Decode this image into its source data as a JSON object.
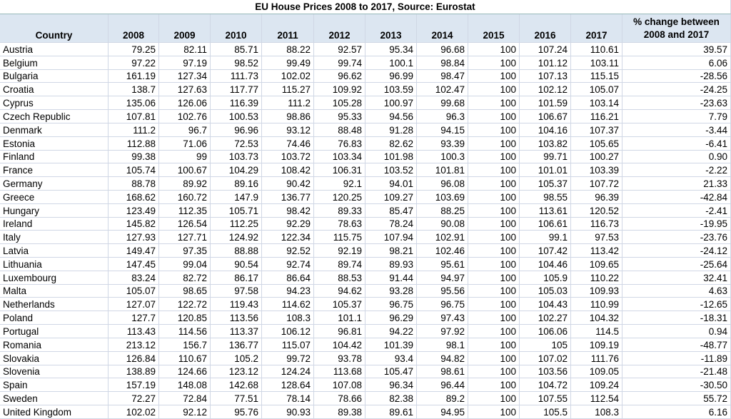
{
  "title": "EU House Prices 2008 to 2017, Source: Eurostat",
  "table": {
    "header": [
      "Country",
      "2008",
      "2009",
      "2010",
      "2011",
      "2012",
      "2013",
      "2014",
      "2015",
      "2016",
      "2017",
      "% change between 2008 and 2017"
    ],
    "rows": [
      [
        "Austria",
        "79.25",
        "82.11",
        "85.71",
        "88.22",
        "92.57",
        "95.34",
        "96.68",
        "100",
        "107.24",
        "110.61",
        "39.57"
      ],
      [
        "Belgium",
        "97.22",
        "97.19",
        "98.52",
        "99.49",
        "99.74",
        "100.1",
        "98.84",
        "100",
        "101.12",
        "103.11",
        "6.06"
      ],
      [
        "Bulgaria",
        "161.19",
        "127.34",
        "111.73",
        "102.02",
        "96.62",
        "96.99",
        "98.47",
        "100",
        "107.13",
        "115.15",
        "-28.56"
      ],
      [
        "Croatia",
        "138.7",
        "127.63",
        "117.77",
        "115.27",
        "109.92",
        "103.59",
        "102.47",
        "100",
        "102.12",
        "105.07",
        "-24.25"
      ],
      [
        "Cyprus",
        "135.06",
        "126.06",
        "116.39",
        "111.2",
        "105.28",
        "100.97",
        "99.68",
        "100",
        "101.59",
        "103.14",
        "-23.63"
      ],
      [
        "Czech Republic",
        "107.81",
        "102.76",
        "100.53",
        "98.86",
        "95.33",
        "94.56",
        "96.3",
        "100",
        "106.67",
        "116.21",
        "7.79"
      ],
      [
        "Denmark",
        "111.2",
        "96.7",
        "96.96",
        "93.12",
        "88.48",
        "91.28",
        "94.15",
        "100",
        "104.16",
        "107.37",
        "-3.44"
      ],
      [
        "Estonia",
        "112.88",
        "71.06",
        "72.53",
        "74.46",
        "76.83",
        "82.62",
        "93.39",
        "100",
        "103.82",
        "105.65",
        "-6.41"
      ],
      [
        "Finland",
        "99.38",
        "99",
        "103.73",
        "103.72",
        "103.34",
        "101.98",
        "100.3",
        "100",
        "99.71",
        "100.27",
        "0.90"
      ],
      [
        "France",
        "105.74",
        "100.67",
        "104.29",
        "108.42",
        "106.31",
        "103.52",
        "101.81",
        "100",
        "101.01",
        "103.39",
        "-2.22"
      ],
      [
        "Germany",
        "88.78",
        "89.92",
        "89.16",
        "90.42",
        "92.1",
        "94.01",
        "96.08",
        "100",
        "105.37",
        "107.72",
        "21.33"
      ],
      [
        "Greece",
        "168.62",
        "160.72",
        "147.9",
        "136.77",
        "120.25",
        "109.27",
        "103.69",
        "100",
        "98.55",
        "96.39",
        "-42.84"
      ],
      [
        "Hungary",
        "123.49",
        "112.35",
        "105.71",
        "98.42",
        "89.33",
        "85.47",
        "88.25",
        "100",
        "113.61",
        "120.52",
        "-2.41"
      ],
      [
        "Ireland",
        "145.82",
        "126.54",
        "112.25",
        "92.29",
        "78.63",
        "78.24",
        "90.08",
        "100",
        "106.61",
        "116.73",
        "-19.95"
      ],
      [
        "Italy",
        "127.93",
        "127.71",
        "124.92",
        "122.34",
        "115.75",
        "107.94",
        "102.91",
        "100",
        "99.1",
        "97.53",
        "-23.76"
      ],
      [
        "Latvia",
        "149.47",
        "97.35",
        "88.88",
        "92.52",
        "92.19",
        "98.21",
        "102.46",
        "100",
        "107.42",
        "113.42",
        "-24.12"
      ],
      [
        "Lithuania",
        "147.45",
        "99.04",
        "90.54",
        "92.74",
        "89.74",
        "89.93",
        "95.61",
        "100",
        "104.46",
        "109.65",
        "-25.64"
      ],
      [
        "Luxembourg",
        "83.24",
        "82.72",
        "86.17",
        "86.64",
        "88.53",
        "91.44",
        "94.97",
        "100",
        "105.9",
        "110.22",
        "32.41"
      ],
      [
        "Malta",
        "105.07",
        "98.65",
        "97.58",
        "94.23",
        "94.62",
        "93.28",
        "95.56",
        "100",
        "105.03",
        "109.93",
        "4.63"
      ],
      [
        "Netherlands",
        "127.07",
        "122.72",
        "119.43",
        "114.62",
        "105.37",
        "96.75",
        "96.75",
        "100",
        "104.43",
        "110.99",
        "-12.65"
      ],
      [
        "Poland",
        "127.7",
        "120.85",
        "113.56",
        "108.3",
        "101.1",
        "96.29",
        "97.43",
        "100",
        "102.27",
        "104.32",
        "-18.31"
      ],
      [
        "Portugal",
        "113.43",
        "114.56",
        "113.37",
        "106.12",
        "96.81",
        "94.22",
        "97.92",
        "100",
        "106.06",
        "114.5",
        "0.94"
      ],
      [
        "Romania",
        "213.12",
        "156.7",
        "136.77",
        "115.07",
        "104.42",
        "101.39",
        "98.1",
        "100",
        "105",
        "109.19",
        "-48.77"
      ],
      [
        "Slovakia",
        "126.84",
        "110.67",
        "105.2",
        "99.72",
        "93.78",
        "93.4",
        "94.82",
        "100",
        "107.02",
        "111.76",
        "-11.89"
      ],
      [
        "Slovenia",
        "138.89",
        "124.66",
        "123.12",
        "124.24",
        "113.68",
        "105.47",
        "98.61",
        "100",
        "103.56",
        "109.05",
        "-21.48"
      ],
      [
        "Spain",
        "157.19",
        "148.08",
        "142.68",
        "128.64",
        "107.08",
        "96.34",
        "96.44",
        "100",
        "104.72",
        "109.24",
        "-30.50"
      ],
      [
        "Sweden",
        "72.27",
        "72.84",
        "77.51",
        "78.14",
        "78.66",
        "82.38",
        "89.2",
        "100",
        "107.55",
        "112.54",
        "55.72"
      ],
      [
        "United Kingdom",
        "102.02",
        "92.12",
        "95.76",
        "90.93",
        "89.38",
        "89.61",
        "94.95",
        "100",
        "105.5",
        "108.3",
        "6.16"
      ]
    ]
  }
}
